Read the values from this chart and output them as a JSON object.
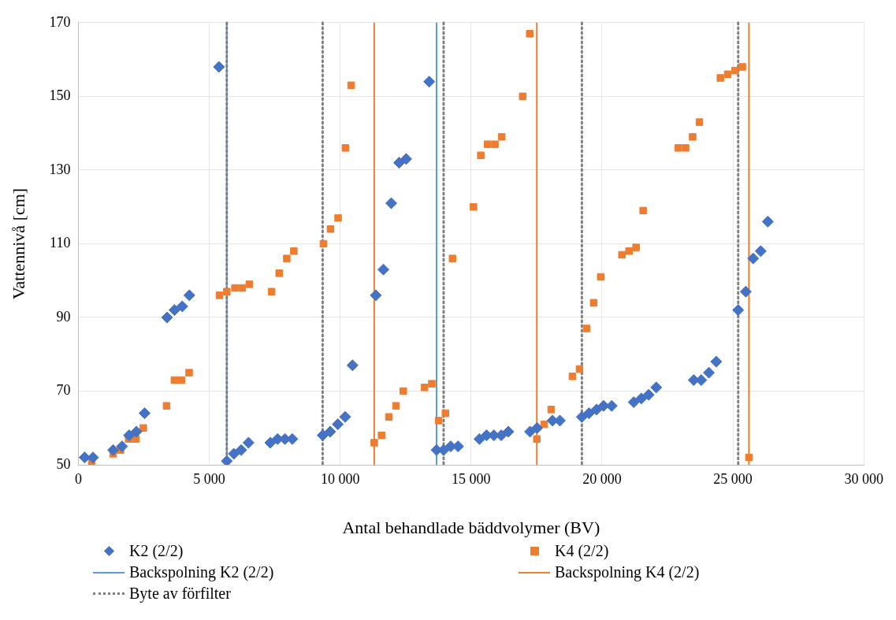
{
  "chart_data": {
    "type": "scatter",
    "xlabel": "Antal behandlade bäddvolymer (BV)",
    "ylabel": "Vattennivå [cm]",
    "xlim": [
      0,
      30000
    ],
    "xticks": [
      0,
      {
        "value": 5000,
        "label": "5 000"
      },
      {
        "value": 10000,
        "label": "10 000"
      },
      {
        "value": 15000,
        "label": "15 000"
      },
      {
        "value": 20000,
        "label": "20 000"
      },
      {
        "value": 25000,
        "label": "25 000"
      },
      {
        "value": 30000,
        "label": "30 000"
      }
    ],
    "ylim": [
      50,
      170
    ],
    "yticks": [
      50,
      70,
      90,
      110,
      130,
      150,
      170
    ],
    "grid": true,
    "legend": "bottom",
    "series": [
      {
        "name": "K2 (2/2)",
        "color": "#4472c4",
        "marker": "diamond",
        "x": [
          240,
          560,
          1330,
          1670,
          1940,
          2220,
          2530,
          3390,
          3670,
          3970,
          4240,
          5370,
          5670,
          5940,
          6220,
          6500,
          7330,
          7610,
          7890,
          8170,
          9330,
          9620,
          9910,
          10190,
          10470,
          11360,
          11650,
          11950,
          12250,
          12520,
          13400,
          13680,
          13950,
          14220,
          14500,
          15320,
          15590,
          15870,
          16150,
          16420,
          17250,
          17520,
          18110,
          18390,
          19230,
          19500,
          19790,
          20060,
          20370,
          21210,
          21500,
          21780,
          22070,
          23500,
          23790,
          24080,
          24360,
          25200,
          25490,
          25770,
          26060,
          26330
        ],
        "values": [
          52,
          52,
          54,
          55,
          58,
          59,
          64,
          90,
          92,
          93,
          96,
          158,
          51,
          53,
          54,
          56,
          56,
          57,
          57,
          57,
          58,
          59,
          61,
          63,
          77,
          96,
          103,
          121,
          132,
          133,
          154,
          54,
          54,
          55,
          55,
          57,
          58,
          58,
          58,
          59,
          59,
          60,
          62,
          62,
          63,
          64,
          65,
          66,
          66,
          67,
          68,
          69,
          71,
          73,
          73,
          75,
          78,
          92,
          97,
          106,
          108,
          116
        ]
      },
      {
        "name": "K4 (2/2)",
        "color": "#ed7d31",
        "marker": "square",
        "x": [
          510,
          1330,
          1610,
          1920,
          2200,
          2480,
          3370,
          3670,
          3940,
          4230,
          5390,
          5670,
          5980,
          6260,
          6530,
          7380,
          7670,
          7960,
          8230,
          9360,
          9630,
          9920,
          10200,
          10420,
          11300,
          11580,
          11860,
          12130,
          12410,
          13220,
          13500,
          13760,
          14020,
          14290,
          15090,
          15370,
          15630,
          15910,
          16170,
          16970,
          17240,
          17510,
          17790,
          18060,
          18870,
          19140,
          19410,
          19680,
          19950,
          20760,
          21030,
          21300,
          21570,
          22910,
          23190,
          23460,
          23720,
          24520,
          24800,
          25080,
          25360,
          25610
        ],
        "values": [
          51,
          53,
          54,
          57,
          57,
          60,
          66,
          73,
          73,
          75,
          96,
          97,
          98,
          98,
          99,
          97,
          102,
          106,
          108,
          110,
          114,
          117,
          136,
          153,
          56,
          58,
          63,
          66,
          70,
          71,
          72,
          62,
          64,
          106,
          120,
          134,
          137,
          137,
          139,
          150,
          167,
          57,
          61,
          65,
          74,
          76,
          87,
          94,
          101,
          107,
          108,
          109,
          119,
          136,
          136,
          139,
          143,
          155,
          156,
          157,
          158,
          52
        ]
      }
    ],
    "ref_lines": [
      {
        "axis": "x",
        "value": 5670,
        "label": "Backspolning K2 (2/2)",
        "color": "#5b9bd5",
        "line_style": "solid"
      },
      {
        "axis": "x",
        "value": 13680,
        "color": "#5b9bd5",
        "line_style": "solid"
      },
      {
        "axis": "x",
        "value": 11300,
        "label": "Backspolning K4 (2/2)",
        "color": "#ed7d31",
        "line_style": "solid"
      },
      {
        "axis": "x",
        "value": 17510,
        "color": "#ed7d31",
        "line_style": "solid"
      },
      {
        "axis": "x",
        "value": 25610,
        "color": "#ed7d31",
        "line_style": "solid"
      },
      {
        "axis": "x",
        "value": 5670,
        "label": "Byte av förfilter",
        "color": "#808080",
        "line_style": "dotted"
      },
      {
        "axis": "x",
        "value": 9330,
        "color": "#808080",
        "line_style": "dotted"
      },
      {
        "axis": "x",
        "value": 13950,
        "color": "#808080",
        "line_style": "dotted"
      },
      {
        "axis": "x",
        "value": 19230,
        "color": "#808080",
        "line_style": "dotted"
      },
      {
        "axis": "x",
        "value": 25200,
        "color": "#808080",
        "line_style": "dotted"
      }
    ]
  }
}
